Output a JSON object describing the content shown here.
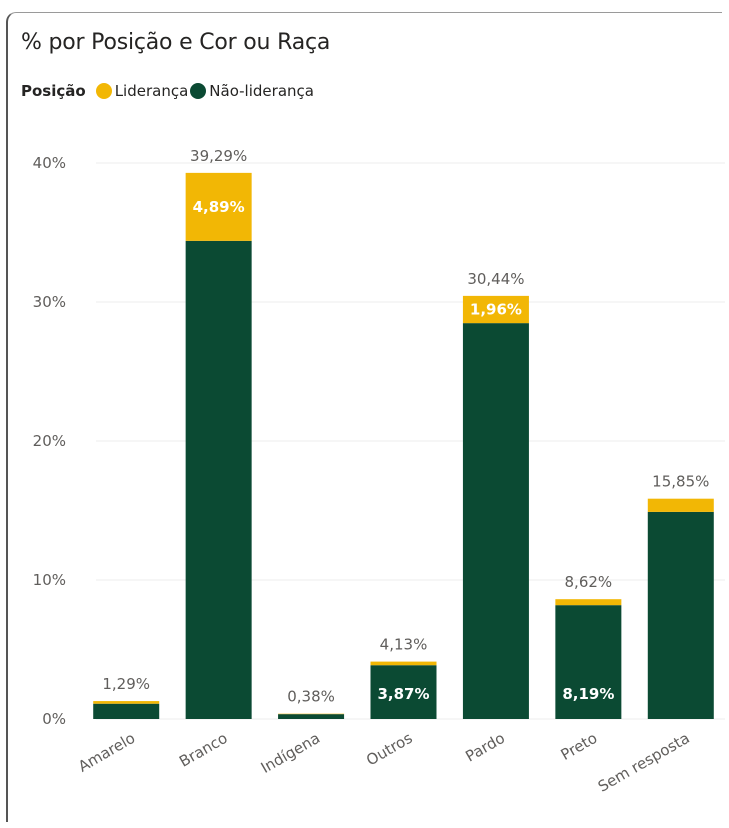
{
  "colors": {
    "lideranca": "#f2b705",
    "nao_lideranca": "#0b4a33",
    "grid": "#eeeeee",
    "text": "#605e5c"
  },
  "chart_data": {
    "type": "bar",
    "stacked": true,
    "title": "% por Posição e Cor ou Raça",
    "legend_title": "Posição",
    "legend_position": "top-left",
    "grid": true,
    "ylim": [
      0,
      40
    ],
    "yticks": [
      "0%",
      "10%",
      "20%",
      "30%",
      "40%"
    ],
    "ytick_values": [
      0,
      10,
      20,
      30,
      40
    ],
    "categories": [
      "Amarelo",
      "Branco",
      "Indígena",
      "Outros",
      "Pardo",
      "Preto",
      "Sem resposta"
    ],
    "series": [
      {
        "name": "Não-liderança",
        "values": [
          1.1,
          34.4,
          0.35,
          3.87,
          28.48,
          8.19,
          14.9
        ],
        "labels": [
          "",
          "",
          "",
          "3,87%",
          "",
          "8,19%",
          ""
        ]
      },
      {
        "name": "Liderança",
        "values": [
          0.19,
          4.89,
          0.03,
          0.26,
          1.96,
          0.43,
          0.95
        ],
        "labels": [
          "",
          "4,89%",
          "",
          "",
          "1,96%",
          "",
          ""
        ]
      }
    ],
    "totals": [
      1.29,
      39.29,
      0.38,
      4.13,
      30.44,
      8.62,
      15.85
    ],
    "total_labels": [
      "1,29%",
      "39,29%",
      "0,38%",
      "4,13%",
      "30,44%",
      "8,62%",
      "15,85%"
    ]
  }
}
